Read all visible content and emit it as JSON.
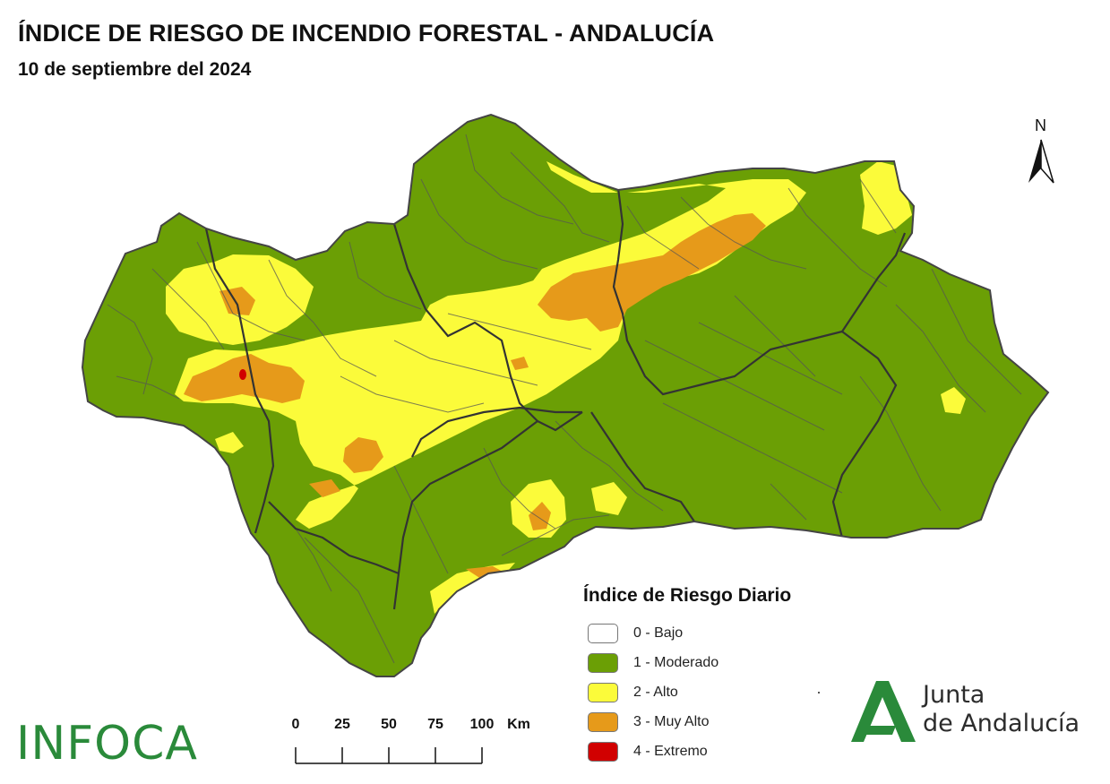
{
  "header": {
    "title": "ÍNDICE DE RIESGO DE INCENDIO FORESTAL - ANDALUCÍA",
    "date": "10 de septiembre del 2024"
  },
  "north": {
    "label": "N"
  },
  "legend": {
    "title": "Índice de Riesgo Diario",
    "items": [
      {
        "label": "0 - Bajo",
        "color": "#ffffff"
      },
      {
        "label": "1 - Moderado",
        "color": "#6b9f05"
      },
      {
        "label": "2 - Alto",
        "color": "#fbfb3a"
      },
      {
        "label": "3 - Muy Alto",
        "color": "#e69a1a"
      },
      {
        "label": "4 - Extremo",
        "color": "#d10000"
      }
    ]
  },
  "scale": {
    "ticks": [
      "0",
      "25",
      "50",
      "75",
      "100"
    ],
    "unit": "Km"
  },
  "logos": {
    "infoca": "INFOCA",
    "junta_line1": "Junta",
    "junta_line2": "de Andalucía"
  },
  "colors": {
    "moderado": "#6b9f05",
    "alto": "#fbfb3a",
    "muy_alto": "#e69a1a",
    "extremo": "#d10000",
    "border": "#555555",
    "province_border": "#333333",
    "junta_green": "#2a8a3a"
  }
}
